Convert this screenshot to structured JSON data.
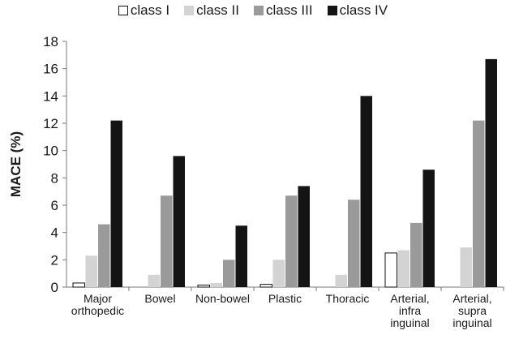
{
  "chart_data": {
    "type": "bar",
    "ylabel": "MACE (%)",
    "xlabel": "",
    "ylim": [
      0,
      18
    ],
    "yticks": [
      0,
      2,
      4,
      6,
      8,
      10,
      12,
      14,
      16,
      18
    ],
    "legend_position": "top",
    "grid": false,
    "categories": [
      [
        "Major",
        "orthopedic"
      ],
      [
        "Bowel"
      ],
      [
        "Non-bowel"
      ],
      [
        "Plastic"
      ],
      [
        "Thoracic"
      ],
      [
        "Arterial,",
        "infra",
        "inguinal"
      ],
      [
        "Arterial,",
        "supra",
        "inguinal"
      ]
    ],
    "series": [
      {
        "name": "class I",
        "color": "#ffffff",
        "values": [
          0.3,
          0,
          0.15,
          0.2,
          0,
          2.5,
          0
        ]
      },
      {
        "name": "class II",
        "color": "#d3d3d3",
        "values": [
          2.3,
          0.9,
          0.3,
          2.0,
          0.9,
          2.7,
          2.9
        ]
      },
      {
        "name": "class III",
        "color": "#9a9a9a",
        "values": [
          4.6,
          6.7,
          2.0,
          6.7,
          6.4,
          4.7,
          12.2
        ]
      },
      {
        "name": "class IV",
        "color": "#141414",
        "values": [
          12.2,
          9.6,
          4.5,
          7.4,
          14.0,
          8.6,
          16.7
        ]
      }
    ]
  }
}
